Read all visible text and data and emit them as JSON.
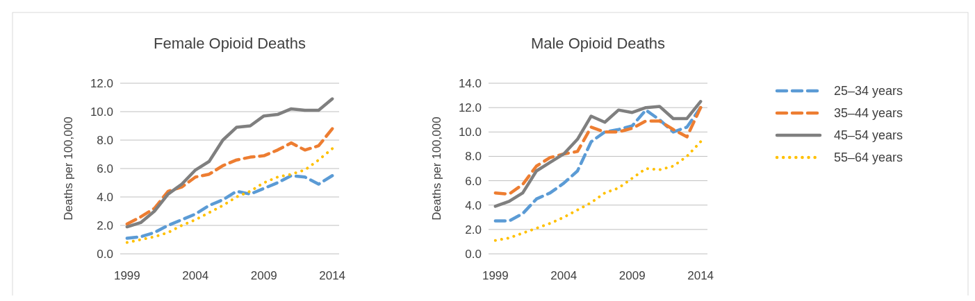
{
  "chart_data": [
    {
      "type": "line",
      "title": "Female Opioid Deaths",
      "ylabel": "Deaths per 100,000",
      "x": [
        1999,
        2000,
        2001,
        2002,
        2003,
        2004,
        2005,
        2006,
        2007,
        2008,
        2009,
        2010,
        2011,
        2012,
        2013,
        2014
      ],
      "xlim": [
        1998.5,
        2014.5
      ],
      "xticks": [
        1999,
        2004,
        2009,
        2014
      ],
      "ylim": [
        0,
        12
      ],
      "yticks": [
        {
          "value": 0,
          "label": "0.0"
        },
        {
          "value": 2,
          "label": "2.0"
        },
        {
          "value": 4,
          "label": "4.0"
        },
        {
          "value": 6,
          "label": "6.0"
        },
        {
          "value": 8,
          "label": "8.0"
        },
        {
          "value": 10,
          "label": "10.0"
        },
        {
          "value": 12,
          "label": "12.0"
        }
      ],
      "grid": "y",
      "legend": false,
      "series": [
        {
          "color": "#5b9bd5",
          "line_style": "dashed",
          "values": [
            1.1,
            1.2,
            1.5,
            2.0,
            2.4,
            2.8,
            3.4,
            3.8,
            4.4,
            4.2,
            4.6,
            5.0,
            5.5,
            5.4,
            4.9,
            5.5
          ]
        },
        {
          "color": "#ed7d31",
          "line_style": "dashed",
          "values": [
            2.1,
            2.6,
            3.2,
            4.4,
            4.7,
            5.4,
            5.6,
            6.2,
            6.6,
            6.8,
            6.9,
            7.3,
            7.8,
            7.3,
            7.6,
            8.8
          ]
        },
        {
          "color": "#7f7f7f",
          "line_style": "solid",
          "values": [
            1.9,
            2.2,
            3.0,
            4.2,
            4.9,
            5.9,
            6.5,
            8.0,
            8.9,
            9.0,
            9.7,
            9.8,
            10.2,
            10.1,
            10.1,
            10.9
          ]
        },
        {
          "color": "#ffc000",
          "line_style": "dotted",
          "values": [
            0.8,
            1.0,
            1.2,
            1.5,
            2.0,
            2.4,
            2.9,
            3.4,
            4.0,
            4.4,
            5.0,
            5.4,
            5.6,
            5.9,
            6.6,
            7.4
          ]
        }
      ]
    },
    {
      "type": "line",
      "title": "Male Opioid Deaths",
      "ylabel": "Deaths per 100,000",
      "x": [
        1999,
        2000,
        2001,
        2002,
        2003,
        2004,
        2005,
        2006,
        2007,
        2008,
        2009,
        2010,
        2011,
        2012,
        2013,
        2014
      ],
      "xlim": [
        1998.5,
        2014.5
      ],
      "xticks": [
        1999,
        2004,
        2009,
        2014
      ],
      "ylim": [
        0,
        14
      ],
      "yticks": [
        {
          "value": 0,
          "label": "0.0"
        },
        {
          "value": 2,
          "label": "2.0"
        },
        {
          "value": 4,
          "label": "4.0"
        },
        {
          "value": 6,
          "label": "6.0"
        },
        {
          "value": 8,
          "label": "8.0"
        },
        {
          "value": 10,
          "label": "10.0"
        },
        {
          "value": 12,
          "label": "12.0"
        },
        {
          "value": 14,
          "label": "14.0"
        }
      ],
      "grid": "y",
      "legend": "right",
      "series": [
        {
          "name": "25–34 years",
          "color": "#5b9bd5",
          "line_style": "dashed",
          "values": [
            2.7,
            2.7,
            3.3,
            4.5,
            5.0,
            5.8,
            6.8,
            9.2,
            10.0,
            10.2,
            10.5,
            11.8,
            11.0,
            10.0,
            10.4,
            12.0
          ]
        },
        {
          "name": "35–44 years",
          "color": "#ed7d31",
          "line_style": "dashed",
          "values": [
            5.0,
            4.9,
            5.7,
            7.2,
            7.9,
            8.2,
            8.4,
            10.4,
            10.0,
            10.0,
            10.3,
            10.9,
            10.9,
            10.2,
            9.6,
            12.0
          ]
        },
        {
          "name": "45–54 years",
          "color": "#7f7f7f",
          "line_style": "solid",
          "values": [
            3.9,
            4.3,
            5.0,
            6.8,
            7.5,
            8.2,
            9.4,
            11.3,
            10.8,
            11.8,
            11.6,
            12.0,
            12.1,
            11.1,
            11.1,
            12.5
          ]
        },
        {
          "name": "55–64 years",
          "color": "#ffc000",
          "line_style": "dotted",
          "values": [
            1.1,
            1.3,
            1.7,
            2.1,
            2.5,
            3.0,
            3.6,
            4.2,
            5.0,
            5.4,
            6.2,
            7.0,
            6.9,
            7.2,
            8.0,
            9.2
          ]
        }
      ]
    }
  ]
}
